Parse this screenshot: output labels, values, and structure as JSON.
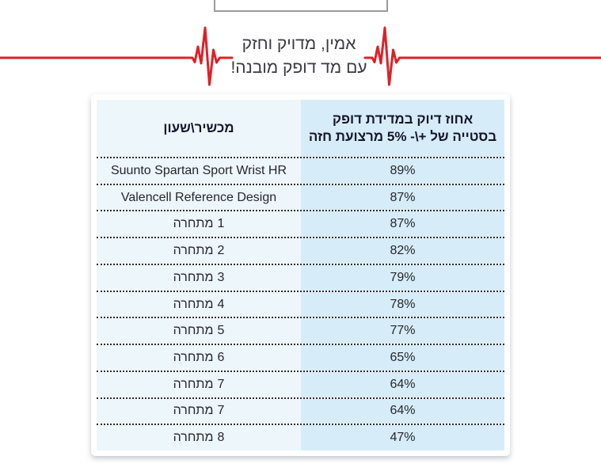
{
  "tagline": {
    "line1": "אמין, מדויק וחזק",
    "line2": "עם מד דופק מובנה!"
  },
  "table": {
    "header": {
      "device_col": "מכשיר\\שעון",
      "accuracy_line1": "אחוז דיוק במדידת דופק",
      "accuracy_line2": "בסטייה של +\\- 5% מרצועת חזה"
    },
    "rows": [
      {
        "name": "Suunto Spartan Sport Wrist HR",
        "num": "",
        "value": "89%"
      },
      {
        "name": "Valencell Reference Design",
        "num": "",
        "value": "87%"
      },
      {
        "name": "מתחרה",
        "num": "1",
        "value": "87%"
      },
      {
        "name": "מתחרה",
        "num": "2",
        "value": "82%"
      },
      {
        "name": "מתחרה",
        "num": "3",
        "value": "79%"
      },
      {
        "name": "מתחרה",
        "num": "4",
        "value": "78%"
      },
      {
        "name": "מתחרה",
        "num": "5",
        "value": "77%"
      },
      {
        "name": "מתחרה",
        "num": "6",
        "value": "65%"
      },
      {
        "name": "מתחרה",
        "num": "7",
        "value": "64%"
      },
      {
        "name": "מתחרה",
        "num": "7",
        "value": "64%"
      },
      {
        "name": "מתחרה",
        "num": "8",
        "value": "47%"
      }
    ]
  },
  "colors": {
    "accent_red": "#dd2127",
    "name_col_bg": "#edf6fb",
    "value_col_bg": "#d6ecf8",
    "text_dark": "#26262c"
  },
  "chart_data": {
    "type": "table",
    "title": "אמין, מדויק וחזק עם מד דופק מובנה!",
    "columns": [
      "מכשיר\\שעון",
      "אחוז דיוק במדידת דופק בסטייה של +\\- 5% מרצועת חזה"
    ],
    "rows": [
      [
        "Suunto Spartan Sport Wrist HR",
        "89%"
      ],
      [
        "Valencell Reference Design",
        "87%"
      ],
      [
        "מתחרה 1",
        "87%"
      ],
      [
        "מתחרה 2",
        "82%"
      ],
      [
        "מתחרה 3",
        "79%"
      ],
      [
        "מתחרה 4",
        "78%"
      ],
      [
        "מתחרה 5",
        "77%"
      ],
      [
        "מתחרה 6",
        "65%"
      ],
      [
        "מתחרה 7",
        "64%"
      ],
      [
        "מתחרה 7",
        "64%"
      ],
      [
        "מתחרה 8",
        "47%"
      ]
    ],
    "values": [
      89,
      87,
      87,
      82,
      79,
      78,
      77,
      65,
      64,
      64,
      47
    ],
    "unit": "%"
  }
}
